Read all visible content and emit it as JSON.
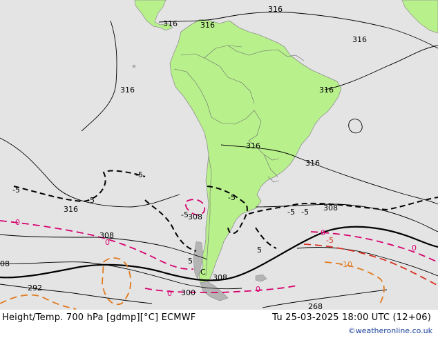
{
  "colors": {
    "ocean": "#e4e4e4",
    "land": "#b8f08c",
    "land_gray": "#b4b4b4",
    "coast": "#909090",
    "border": "#6c6c6c",
    "height_contour": "#000000",
    "temp_neg5": "#000000",
    "temp_0": "#d6006e",
    "temp_neg10": "#e07a20",
    "temp_neg5_red": "#d83020"
  },
  "height_labels": {
    "h316_a": "316",
    "h316_b": "316",
    "h316_c": "316",
    "h316_d": "316",
    "h316_e": "316",
    "h316_f": "316",
    "h316_g": "316",
    "h316_h": "316",
    "h316_i": "316",
    "h308_a": "308",
    "h308_b": "308",
    "h308_c": "308",
    "h308_d": "308",
    "h300": "300",
    "h292": "292",
    "h268": "268",
    "h08_edge": "08"
  },
  "temp_labels": {
    "t_neg5_a": "-5",
    "t_neg5_b": "-5",
    "t_neg5_c": "-5",
    "t_neg5_d": "-5",
    "t_neg5_e": "-5",
    "t_neg5_f": "-5",
    "t_neg5_g": "-5",
    "t_5_h": "5",
    "t_5_i": "5",
    "t_0_a": "0",
    "t_0_b": "0",
    "t_0_c": "0",
    "t_0_d": "0",
    "t_0_e": "0",
    "t_0_f": "0",
    "t_neg10": "-10",
    "t_neg5_red": "-5",
    "t_C": "C"
  },
  "footer": {
    "title": "Height/Temp. 700 hPa [gdmp][°C] ECMWF",
    "valid_time": "Tu 25-03-2025 18:00 UTC (12+06)",
    "copyright": "©weatheronline.co.uk"
  }
}
